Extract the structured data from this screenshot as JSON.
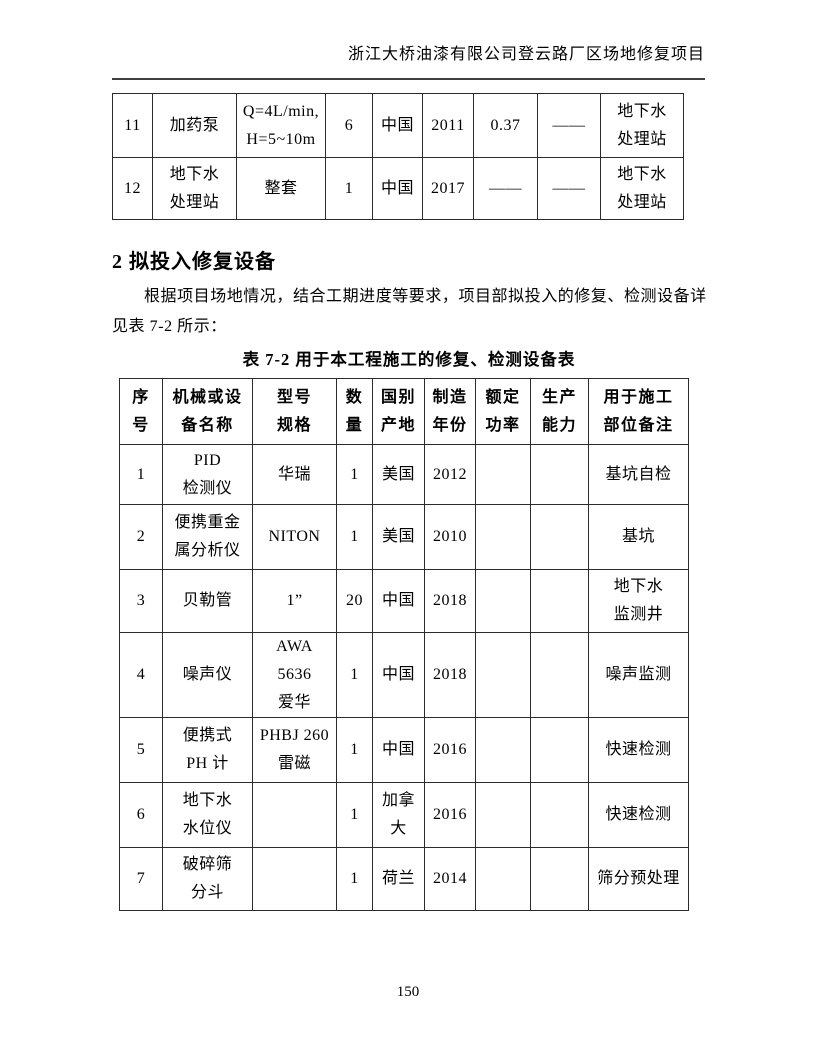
{
  "page_header": {
    "title": "浙江大桥油漆有限公司登云路厂区场地修复项目"
  },
  "table_continuation": {
    "rows": [
      {
        "cells": [
          [
            "11"
          ],
          [
            "加药泵"
          ],
          [
            "Q=4L/min,",
            "H=5~10m"
          ],
          [
            "6"
          ],
          [
            "中国"
          ],
          [
            "2011"
          ],
          [
            "0.37"
          ],
          [
            "——"
          ],
          [
            "地下水",
            "处理站"
          ]
        ]
      },
      {
        "cells": [
          [
            "12"
          ],
          [
            "地下水",
            "处理站"
          ],
          [
            "整套"
          ],
          [
            "1"
          ],
          [
            "中国"
          ],
          [
            "2017"
          ],
          [
            "——"
          ],
          [
            "——"
          ],
          [
            "地下水",
            "处理站"
          ]
        ]
      }
    ]
  },
  "section": {
    "heading": "2 拟投入修复设备"
  },
  "paragraph": {
    "line1": "根据项目场地情况，结合工期进度等要求，项目部拟投入的修复、检测设备详",
    "line2": "见表 7-2 所示："
  },
  "equipment_table": {
    "title": "表 7-2  用于本工程施工的修复、检测设备表",
    "header_cells": [
      [
        "序",
        "号"
      ],
      [
        "机械或设",
        "备名称"
      ],
      [
        "型号",
        "规格"
      ],
      [
        "数",
        "量"
      ],
      [
        "国别",
        "产地"
      ],
      [
        "制造",
        "年份"
      ],
      [
        "额定",
        "功率"
      ],
      [
        "生产",
        "能力"
      ],
      [
        "用于施工",
        "部位备注"
      ]
    ],
    "rows": [
      {
        "cells": [
          [
            "1"
          ],
          [
            "PID",
            "检测仪"
          ],
          [
            "华瑞"
          ],
          [
            "1"
          ],
          [
            "美国"
          ],
          [
            "2012"
          ],
          [],
          [],
          [
            "基坑自检"
          ]
        ]
      },
      {
        "cells": [
          [
            "2"
          ],
          [
            "便携重金",
            "属分析仪"
          ],
          [
            "NITON"
          ],
          [
            "1"
          ],
          [
            "美国"
          ],
          [
            "2010"
          ],
          [],
          [],
          [
            "基坑"
          ]
        ]
      },
      {
        "cells": [
          [
            "3"
          ],
          [
            "贝勒管"
          ],
          [
            "1”"
          ],
          [
            "20"
          ],
          [
            "中国"
          ],
          [
            "2018"
          ],
          [],
          [],
          [
            "地下水",
            "监测井"
          ]
        ]
      },
      {
        "cells": [
          [
            "4"
          ],
          [
            "噪声仪"
          ],
          [
            "AWA",
            "5636",
            "爱华"
          ],
          [
            "1"
          ],
          [
            "中国"
          ],
          [
            "2018"
          ],
          [],
          [],
          [
            "噪声监测"
          ]
        ]
      },
      {
        "cells": [
          [
            "5"
          ],
          [
            "便携式",
            "PH 计"
          ],
          [
            "PHBJ 260",
            "雷磁"
          ],
          [
            "1"
          ],
          [
            "中国"
          ],
          [
            "2016"
          ],
          [],
          [],
          [
            "快速检测"
          ]
        ]
      },
      {
        "cells": [
          [
            "6"
          ],
          [
            "地下水",
            "水位仪"
          ],
          [],
          [
            "1"
          ],
          [
            "加拿",
            "大"
          ],
          [
            "2016"
          ],
          [],
          [],
          [
            "快速检测"
          ]
        ]
      },
      {
        "cells": [
          [
            "7"
          ],
          [
            "破碎筛",
            "分斗"
          ],
          [],
          [
            "1"
          ],
          [
            "荷兰"
          ],
          [
            "2014"
          ],
          [],
          [],
          [
            "筛分预处理"
          ]
        ]
      }
    ]
  },
  "footer": {
    "page_number": "150"
  }
}
